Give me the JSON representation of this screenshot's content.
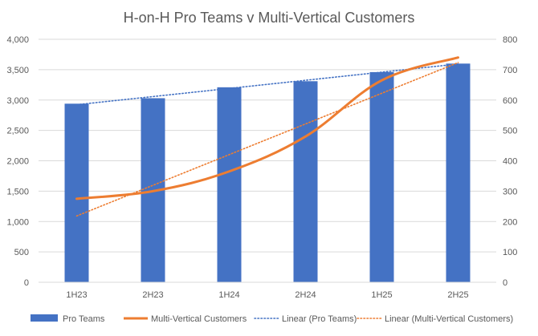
{
  "chart_data": {
    "type": "bar",
    "title": "H-on-H Pro Teams v Multi-Vertical Customers",
    "categories": [
      "1H23",
      "2H23",
      "1H24",
      "2H24",
      "1H25",
      "2H25"
    ],
    "series": [
      {
        "name": "Pro Teams",
        "type": "bar",
        "axis": "left",
        "color": "#4472C4",
        "values": [
          2940,
          3030,
          3210,
          3310,
          3460,
          3600
        ]
      },
      {
        "name": "Multi-Vertical Customers",
        "type": "line",
        "axis": "right",
        "color": "#ED7D31",
        "values": [
          275,
          300,
          365,
          480,
          665,
          740
        ]
      },
      {
        "name": "Linear (Pro Teams)",
        "type": "trendline",
        "of": "Pro Teams",
        "axis": "left",
        "color": "#4472C4",
        "style": "dotted"
      },
      {
        "name": "Linear (Multi-Vertical Customers)",
        "type": "trendline",
        "of": "Multi-Vertical Customers",
        "axis": "right",
        "color": "#ED7D31",
        "style": "dotted"
      }
    ],
    "y_left": {
      "ylim": [
        0,
        4000
      ],
      "ticks": [
        0,
        500,
        1000,
        1500,
        2000,
        2500,
        3000,
        3500,
        4000
      ],
      "tick_labels": [
        "0",
        "500",
        "1,000",
        "1,500",
        "2,000",
        "2,500",
        "3,000",
        "3,500",
        "4,000"
      ]
    },
    "y_right": {
      "ylim": [
        0,
        800
      ],
      "ticks": [
        0,
        100,
        200,
        300,
        400,
        500,
        600,
        700,
        800
      ],
      "tick_labels": [
        "0",
        "100",
        "200",
        "300",
        "400",
        "500",
        "600",
        "700",
        "800"
      ]
    },
    "grid": true,
    "legend": "bottom"
  }
}
